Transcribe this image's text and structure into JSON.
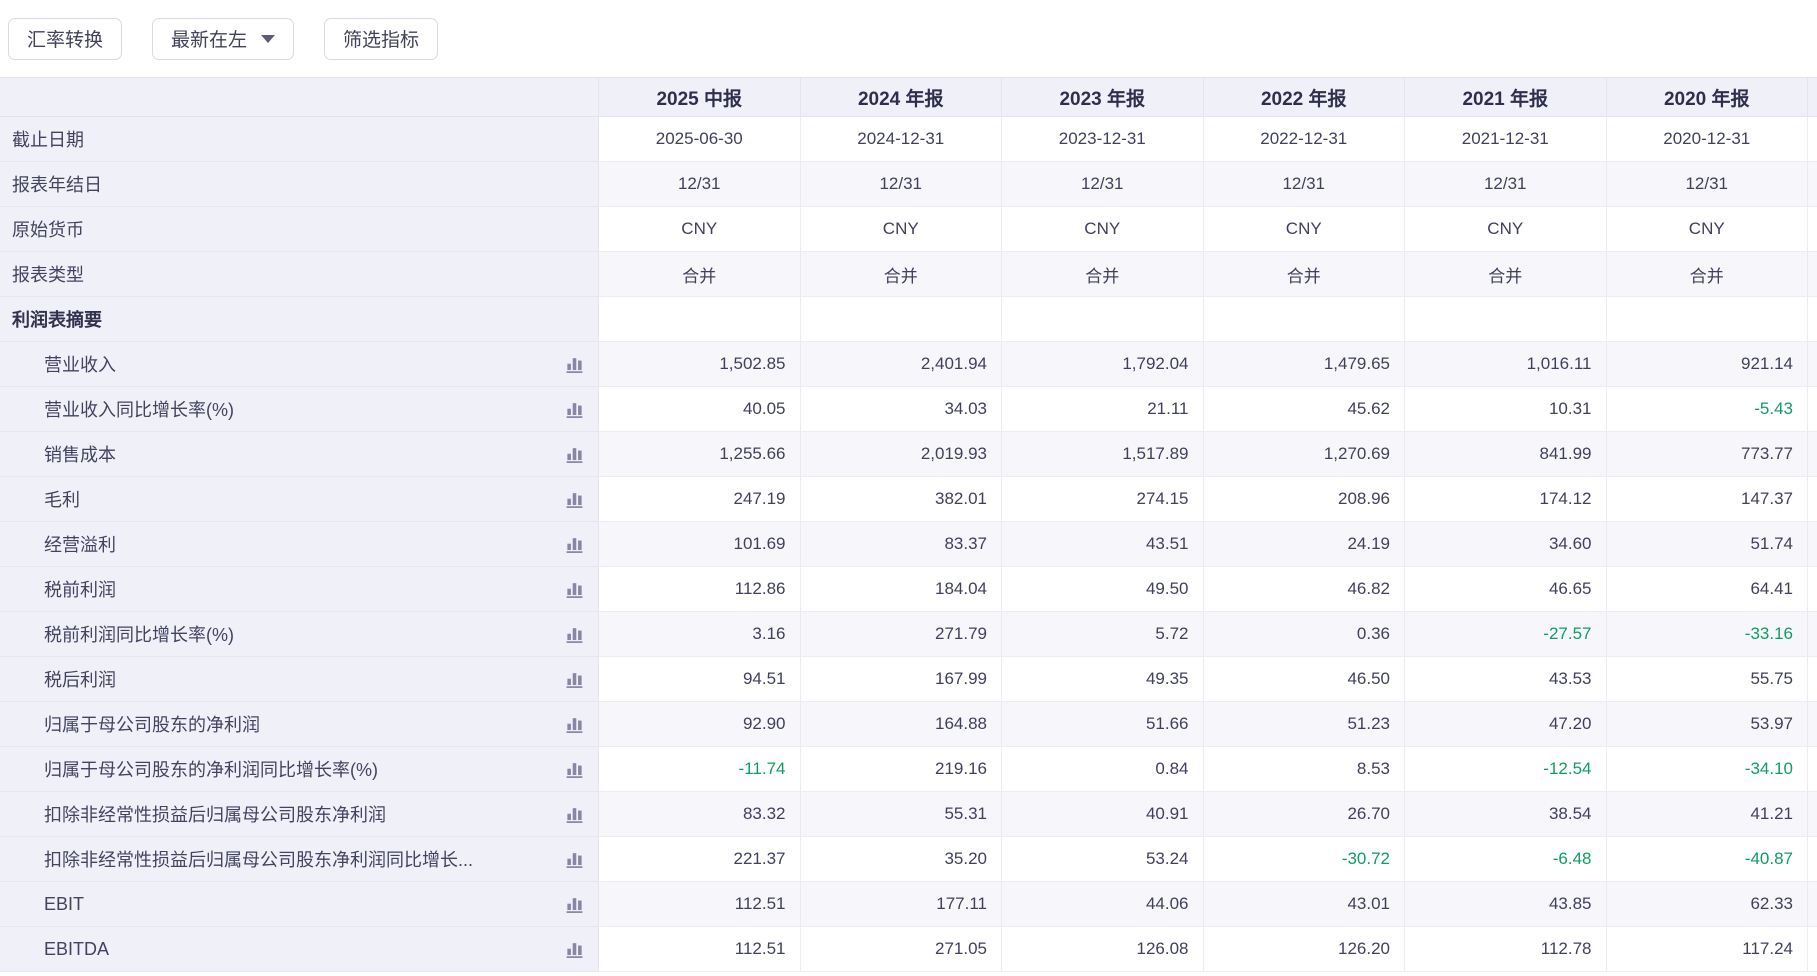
{
  "toolbar": {
    "buttons": [
      {
        "id": "exchange-rate",
        "label": "汇率转换"
      },
      {
        "id": "sort-order",
        "label": "最新在左",
        "dropdown": true
      },
      {
        "id": "filter-indicators",
        "label": "筛选指标"
      }
    ]
  },
  "icons": {
    "metric_chart": "bar-chart-icon",
    "dropdown": "chevron-down-icon"
  },
  "colors": {
    "negative_value_green": "#0e9d63",
    "header_bg": "#f0f0f9",
    "stripe_bg": "#f7f7fb",
    "text": "#40405c"
  },
  "table": {
    "columns": [
      "2025 中报",
      "2024 年报",
      "2023 年报",
      "2022 年报",
      "2021 年报",
      "2020 年报"
    ],
    "rows": [
      {
        "type": "info",
        "label": "截止日期",
        "values": [
          "2025-06-30",
          "2024-12-31",
          "2023-12-31",
          "2022-12-31",
          "2021-12-31",
          "2020-12-31"
        ]
      },
      {
        "type": "info",
        "label": "报表年结日",
        "values": [
          "12/31",
          "12/31",
          "12/31",
          "12/31",
          "12/31",
          "12/31"
        ]
      },
      {
        "type": "info",
        "label": "原始货币",
        "values": [
          "CNY",
          "CNY",
          "CNY",
          "CNY",
          "CNY",
          "CNY"
        ]
      },
      {
        "type": "info",
        "label": "报表类型",
        "values": [
          "合并",
          "合并",
          "合并",
          "合并",
          "合并",
          "合并"
        ]
      },
      {
        "type": "section",
        "label": "利润表摘要",
        "values": [
          "",
          "",
          "",
          "",
          "",
          ""
        ]
      },
      {
        "type": "metric",
        "label": "营业收入",
        "values": [
          "1,502.85",
          "2,401.94",
          "1,792.04",
          "1,479.65",
          "1,016.11",
          "921.14"
        ]
      },
      {
        "type": "metric",
        "label": "营业收入同比增长率(%)",
        "values": [
          "40.05",
          "34.03",
          "21.11",
          "45.62",
          "10.31",
          "-5.43"
        ]
      },
      {
        "type": "metric",
        "label": "销售成本",
        "values": [
          "1,255.66",
          "2,019.93",
          "1,517.89",
          "1,270.69",
          "841.99",
          "773.77"
        ]
      },
      {
        "type": "metric",
        "label": "毛利",
        "values": [
          "247.19",
          "382.01",
          "274.15",
          "208.96",
          "174.12",
          "147.37"
        ]
      },
      {
        "type": "metric",
        "label": "经营溢利",
        "values": [
          "101.69",
          "83.37",
          "43.51",
          "24.19",
          "34.60",
          "51.74"
        ]
      },
      {
        "type": "metric",
        "label": "税前利润",
        "values": [
          "112.86",
          "184.04",
          "49.50",
          "46.82",
          "46.65",
          "64.41"
        ]
      },
      {
        "type": "metric",
        "label": "税前利润同比增长率(%)",
        "values": [
          "3.16",
          "271.79",
          "5.72",
          "0.36",
          "-27.57",
          "-33.16"
        ]
      },
      {
        "type": "metric",
        "label": "税后利润",
        "values": [
          "94.51",
          "167.99",
          "49.35",
          "46.50",
          "43.53",
          "55.75"
        ]
      },
      {
        "type": "metric",
        "label": "归属于母公司股东的净利润",
        "values": [
          "92.90",
          "164.88",
          "51.66",
          "51.23",
          "47.20",
          "53.97"
        ]
      },
      {
        "type": "metric",
        "label": "归属于母公司股东的净利润同比增长率(%)",
        "values": [
          "-11.74",
          "219.16",
          "0.84",
          "8.53",
          "-12.54",
          "-34.10"
        ]
      },
      {
        "type": "metric",
        "label": "扣除非经常性损益后归属母公司股东净利润",
        "values": [
          "83.32",
          "55.31",
          "40.91",
          "26.70",
          "38.54",
          "41.21"
        ]
      },
      {
        "type": "metric",
        "label": "扣除非经常性损益后归属母公司股东净利润同比增长...",
        "values": [
          "221.37",
          "35.20",
          "53.24",
          "-30.72",
          "-6.48",
          "-40.87"
        ]
      },
      {
        "type": "metric",
        "label": "EBIT",
        "values": [
          "112.51",
          "177.11",
          "44.06",
          "43.01",
          "43.85",
          "62.33"
        ]
      },
      {
        "type": "metric",
        "label": "EBITDA",
        "values": [
          "112.51",
          "271.05",
          "126.08",
          "126.20",
          "112.78",
          "117.24"
        ]
      }
    ]
  }
}
